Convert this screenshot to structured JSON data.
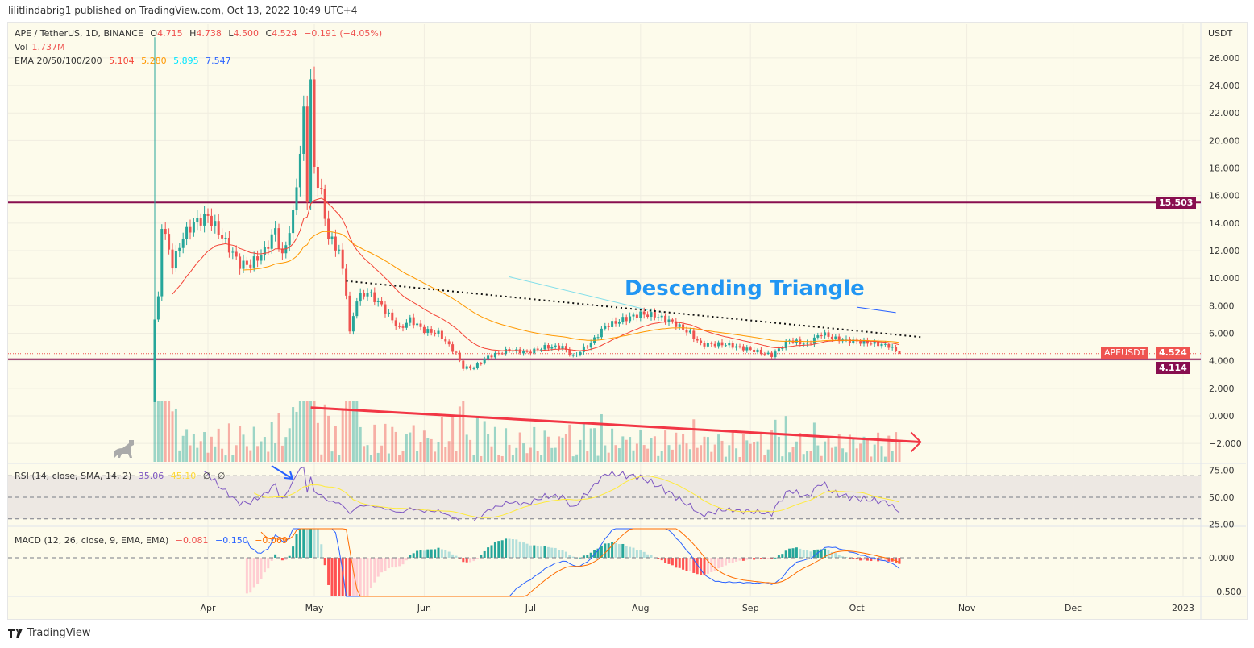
{
  "published": "lilitlindabrig1 published on TradingView.com, Oct 13, 2022 10:49 UTC+4",
  "legend": {
    "symbol": "APE / TetherUS, 1D, BINANCE",
    "o_label": "O",
    "o": "4.715",
    "h_label": "H",
    "h": "4.738",
    "l_label": "L",
    "l": "4.500",
    "c_label": "C",
    "c": "4.524",
    "change": "−0.191 (−4.05%)",
    "vol_label": "Vol",
    "vol": "1.737M",
    "ema_label": "EMA 20/50/100/200",
    "ema20": "5.104",
    "ema50": "5.280",
    "ema100": "5.895",
    "ema200": "7.547",
    "rsi_label": "RSI (14, close, SMA, 14, 2)",
    "rsi": "35.06",
    "rsi_sma": "45.10",
    "rsi_x1": "∅",
    "rsi_x2": "∅",
    "macd_label": "MACD (12, 26, close, 9, EMA, EMA)",
    "macd_hist": "−0.081",
    "macd": "−0.150",
    "macd_signal": "−0.069"
  },
  "annotation": "Descending Triangle",
  "price_tags": {
    "symbol": "APEUSDT",
    "last": "4.524",
    "resistance": "15.503",
    "support": "4.114"
  },
  "axis_unit": "USDT",
  "footer_brand": "TradingView",
  "colors": {
    "up": "#26a69a",
    "down": "#ef5350",
    "ema20": "#f44336",
    "ema50": "#ff9800",
    "ema100": "#00e5ff",
    "ema200": "#2962ff",
    "levels": "#880e4f",
    "rsi": "#7e57c2",
    "rsi_sma": "#ffeb3b",
    "macd": "#2962ff",
    "signal": "#ff6d00",
    "annotation": "#2196f3"
  },
  "chart_data": {
    "type": "candlestick",
    "y_ticks": [
      "26.000",
      "24.000",
      "22.000",
      "20.000",
      "18.000",
      "16.000",
      "14.000",
      "12.000",
      "10.000",
      "8.000",
      "6.000",
      "4.000",
      "2.000",
      "0.000",
      "−2.000"
    ],
    "x_ticks": [
      "Apr",
      "May",
      "Jun",
      "Jul",
      "Aug",
      "Sep",
      "Oct",
      "Nov",
      "Dec",
      "2023"
    ],
    "rsi_ticks": [
      "75.00",
      "50.00",
      "25.00"
    ],
    "macd_ticks": [
      "0.000",
      "−0.500"
    ],
    "ylim": [
      -3,
      28
    ],
    "horizontal_levels": [
      15.503,
      4.114
    ],
    "closes": [
      [
        "2022-03-17",
        7
      ],
      [
        "2022-03-18",
        8.5
      ],
      [
        "2022-03-19",
        14
      ],
      [
        "2022-03-22",
        11
      ],
      [
        "2022-03-25",
        13
      ],
      [
        "2022-03-28",
        14
      ],
      [
        "2022-04-01",
        14.5
      ],
      [
        "2022-04-05",
        13
      ],
      [
        "2022-04-10",
        11
      ],
      [
        "2022-04-13",
        11
      ],
      [
        "2022-04-17",
        12
      ],
      [
        "2022-04-20",
        13.5
      ],
      [
        "2022-04-22",
        11.5
      ],
      [
        "2022-04-25",
        14.5
      ],
      [
        "2022-04-26",
        17
      ],
      [
        "2022-04-27",
        19
      ],
      [
        "2022-04-28",
        22
      ],
      [
        "2022-04-29",
        16
      ],
      [
        "2022-04-30",
        24
      ],
      [
        "2022-05-01",
        18
      ],
      [
        "2022-05-03",
        16
      ],
      [
        "2022-05-05",
        13
      ],
      [
        "2022-05-08",
        12
      ],
      [
        "2022-05-10",
        9
      ],
      [
        "2022-05-11",
        6
      ],
      [
        "2022-05-13",
        8.5
      ],
      [
        "2022-05-16",
        9
      ],
      [
        "2022-05-20",
        8
      ],
      [
        "2022-05-25",
        6.3
      ],
      [
        "2022-05-28",
        7
      ],
      [
        "2022-06-01",
        6.2
      ],
      [
        "2022-06-05",
        6
      ],
      [
        "2022-06-10",
        4.5
      ],
      [
        "2022-06-12",
        3.5
      ],
      [
        "2022-06-15",
        3.5
      ],
      [
        "2022-06-19",
        4.3
      ],
      [
        "2022-06-25",
        4.8
      ],
      [
        "2022-06-30",
        4.6
      ],
      [
        "2022-07-05",
        5
      ],
      [
        "2022-07-10",
        5
      ],
      [
        "2022-07-13",
        4.3
      ],
      [
        "2022-07-18",
        5.3
      ],
      [
        "2022-07-22",
        6.5
      ],
      [
        "2022-07-27",
        7
      ],
      [
        "2022-08-01",
        7.4
      ],
      [
        "2022-08-05",
        7.3
      ],
      [
        "2022-08-10",
        6.8
      ],
      [
        "2022-08-15",
        6
      ],
      [
        "2022-08-18",
        5.2
      ],
      [
        "2022-08-25",
        5.2
      ],
      [
        "2022-09-01",
        4.8
      ],
      [
        "2022-09-07",
        4.4
      ],
      [
        "2022-09-12",
        5.5
      ],
      [
        "2022-09-17",
        5.2
      ],
      [
        "2022-09-21",
        6
      ],
      [
        "2022-09-25",
        5.6
      ],
      [
        "2022-10-01",
        5.4
      ],
      [
        "2022-10-05",
        5.3
      ],
      [
        "2022-10-10",
        5.1
      ],
      [
        "2022-10-13",
        4.524
      ]
    ],
    "trendlines": [
      {
        "style": "dotted",
        "from": [
          "2022-05-10",
          9.8
        ],
        "to": [
          "2022-10-20",
          5.7
        ]
      },
      {
        "style": "cyan",
        "from": [
          "2022-06-25",
          10.1
        ],
        "to": [
          "2022-08-03",
          7.7
        ]
      },
      {
        "style": "blue",
        "from": [
          "2022-10-01",
          7.9
        ],
        "to": [
          "2022-10-12",
          7.5
        ]
      },
      {
        "style": "red-arrow",
        "from": [
          "2022-04-30",
          0.6
        ],
        "to": [
          "2022-10-19",
          -1.9
        ]
      }
    ]
  }
}
